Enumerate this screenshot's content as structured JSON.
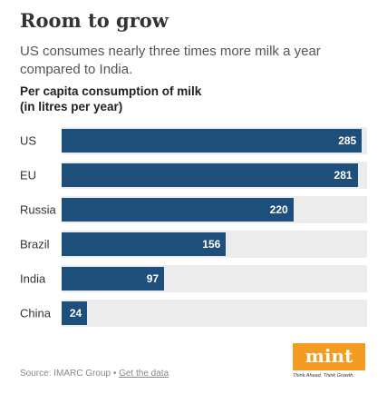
{
  "header": {
    "title": "Room to grow",
    "subtitle": "US consumes nearly three times more milk a year compared to India.",
    "measure_label_line1": "Per capita consumption of milk",
    "measure_label_line2": "(in litres per year)"
  },
  "chart_data": {
    "type": "bar",
    "orientation": "horizontal",
    "categories": [
      "US",
      "EU",
      "Russia",
      "Brazil",
      "India",
      "China"
    ],
    "values": [
      285,
      281,
      220,
      156,
      97,
      24
    ],
    "xlim": [
      0,
      290
    ],
    "grid": false,
    "colors": {
      "bar": "#1e4e7a",
      "track": "#ececec",
      "value_label": "#ffffff"
    }
  },
  "footer": {
    "source_text": "Source: IMARC Group • ",
    "source_link": "Get the data",
    "logo_text": "mint",
    "logo_color": "#f39c21",
    "tagline": "Think Ahead. Think Growth."
  }
}
